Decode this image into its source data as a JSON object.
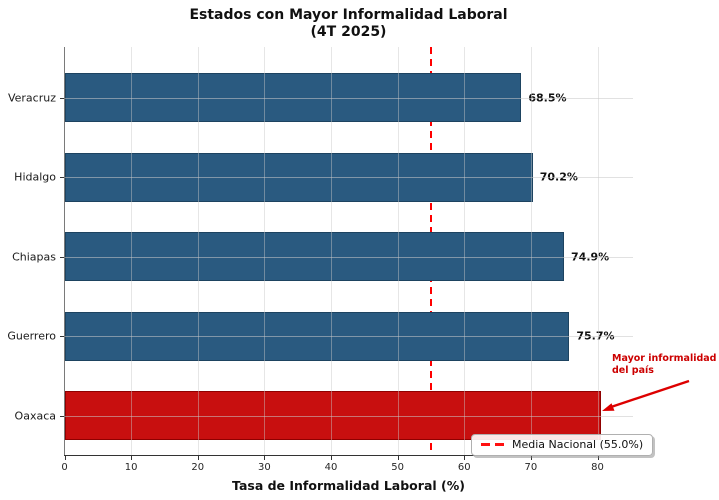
{
  "title": {
    "line1": "Estados con Mayor Informalidad Laboral",
    "line2": "(4T 2025)"
  },
  "chart_data": {
    "type": "bar",
    "orientation": "horizontal",
    "title": "Estados con Mayor Informalidad Laboral (4T 2025)",
    "xlabel": "Tasa de Informalidad Laboral (%)",
    "categories": [
      "Veracruz",
      "Hidalgo",
      "Chiapas",
      "Guerrero",
      "Oaxaca"
    ],
    "values": [
      68.5,
      70.2,
      74.9,
      75.7,
      80.5
    ],
    "value_labels": [
      "68.5%",
      "70.2%",
      "74.9%",
      "75.7%",
      ""
    ],
    "bar_colors": [
      "#2a5a80",
      "#2a5a80",
      "#2a5a80",
      "#2a5a80",
      "#c80f0f"
    ],
    "bar_edge_colors": [
      "#1d4360",
      "#1d4360",
      "#1d4360",
      "#1d4360",
      "#8f0000"
    ],
    "xticks": [
      0,
      10,
      20,
      30,
      40,
      50,
      60,
      70,
      80
    ],
    "xlim": [
      0,
      85.3
    ],
    "grid": true,
    "reference_line": {
      "value": 55.0,
      "color": "#ff0000",
      "style": "dashed",
      "legend_label": "Media Nacional (55.0%)"
    },
    "legend_position": "lower right",
    "annotation": {
      "line1": "Mayor informalidad",
      "line2": "del país",
      "color": "#cc0000",
      "points_to_category": "Oaxaca"
    }
  },
  "legend": {
    "label": "Media Nacional (55.0%)"
  },
  "annotation": {
    "line1": "Mayor informalidad",
    "line2": "del país"
  },
  "axis": {
    "xlabel": "Tasa de Informalidad Laboral (%)"
  }
}
